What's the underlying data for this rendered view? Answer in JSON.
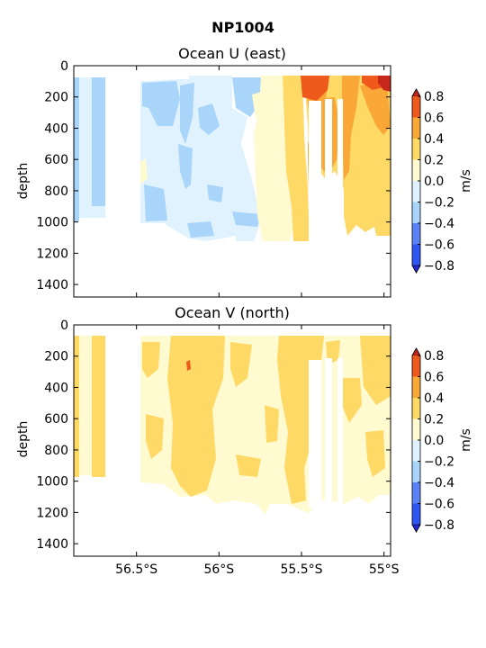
{
  "figure_title": "NP1004",
  "colors": {
    "c_m08_m06": "#2f55f2",
    "c_m06_m04": "#5a84f6",
    "c_m04_m02": "#a9d5fb",
    "c_m02_0": "#dff2fd",
    "c_0_02": "#fffad0",
    "c_02_04": "#ffd966",
    "c_04_06": "#f9a838",
    "c_06_08": "#ee5a1b",
    "over": "#c8281b",
    "under": "#2828e0"
  },
  "chart_data": [
    {
      "type": "heatmap",
      "title": "Ocean U (east)",
      "ylabel": "depth",
      "y_ticks": [
        0,
        200,
        400,
        600,
        800,
        1000,
        1200,
        1400
      ],
      "ylim": [
        1480,
        0
      ],
      "x_ticks": [
        "56.5°S",
        "56°S",
        "55.5°S",
        "55°S"
      ],
      "xlim": [
        -56.88,
        -54.96
      ],
      "colorbar": {
        "label": "m/s",
        "ticks": [
          "0.8",
          "0.6",
          "0.4",
          "0.2",
          "0.0",
          "−0.2",
          "−0.4",
          "−0.6",
          "−0.8"
        ],
        "levels": [
          -0.8,
          -0.6,
          -0.4,
          -0.2,
          0.0,
          0.2,
          0.4,
          0.6,
          0.8
        ],
        "extend": "both"
      },
      "sections": [
        {
          "lat": -56.82,
          "depth_top": 80,
          "depth_bottom": 980,
          "dominant": "-0.4 to -0.2"
        },
        {
          "lat": -56.72,
          "depth_top": 80,
          "depth_bottom": 980,
          "dominant": "-0.2 to 0.0"
        },
        {
          "lat": -56.45,
          "depth_top": 80,
          "depth_bottom": 1010,
          "dominant": "-0.2 to 0.0"
        },
        {
          "lat": -56.1,
          "depth_top": 80,
          "depth_bottom": 1100,
          "dominant": "-0.2 to 0.0"
        },
        {
          "lat": -55.85,
          "depth_top": 80,
          "depth_bottom": 1120,
          "dominant": "-0.2 to 0.0"
        },
        {
          "lat": -55.55,
          "depth_top": 80,
          "depth_bottom": 1150,
          "dominant": "0.2 to 0.4"
        },
        {
          "lat": -55.45,
          "depth_top": 80,
          "depth_bottom": 1150,
          "dominant": "0.4 to 0.6"
        },
        {
          "lat": -55.2,
          "depth_top": 80,
          "depth_bottom": 1120,
          "dominant": "0.2 to 0.4"
        },
        {
          "lat": -55.0,
          "depth_top": 80,
          "depth_bottom": 1100,
          "dominant": "0.2 to 0.4"
        }
      ],
      "max_value_region": {
        "lat": -54.98,
        "depth": 120,
        "range": "> 0.8"
      }
    },
    {
      "type": "heatmap",
      "title": "Ocean V (north)",
      "ylabel": "depth",
      "y_ticks": [
        0,
        200,
        400,
        600,
        800,
        1000,
        1200,
        1400
      ],
      "ylim": [
        1480,
        0
      ],
      "x_ticks": [
        "56.5°S",
        "56°S",
        "55.5°S",
        "55°S"
      ],
      "xlim": [
        -56.88,
        -54.96
      ],
      "colorbar": {
        "label": "m/s",
        "ticks": [
          "0.8",
          "0.6",
          "0.4",
          "0.2",
          "0.0",
          "−0.2",
          "−0.4",
          "−0.6",
          "−0.8"
        ],
        "levels": [
          -0.8,
          -0.6,
          -0.4,
          -0.2,
          0.0,
          0.2,
          0.4,
          0.6,
          0.8
        ],
        "extend": "both"
      },
      "sections": [
        {
          "lat": -56.82,
          "depth_top": 80,
          "depth_bottom": 980,
          "dominant": "0.2 to 0.4"
        },
        {
          "lat": -56.72,
          "depth_top": 80,
          "depth_bottom": 980,
          "dominant": "0.2 to 0.4"
        },
        {
          "lat": -56.45,
          "depth_top": 80,
          "depth_bottom": 1010,
          "dominant": "0.0 to 0.2"
        },
        {
          "lat": -56.1,
          "depth_top": 80,
          "depth_bottom": 1100,
          "dominant": "0.2 to 0.4"
        },
        {
          "lat": -55.85,
          "depth_top": 80,
          "depth_bottom": 1120,
          "dominant": "0.0 to 0.2"
        },
        {
          "lat": -55.55,
          "depth_top": 80,
          "depth_bottom": 1150,
          "dominant": "0.2 to 0.4"
        },
        {
          "lat": -55.2,
          "depth_top": 80,
          "depth_bottom": 1120,
          "dominant": "0.0 to 0.2"
        },
        {
          "lat": -55.0,
          "depth_top": 80,
          "depth_bottom": 1100,
          "dominant": "0.2 to 0.4"
        }
      ],
      "max_value_region": {
        "lat": -55.93,
        "depth": 270,
        "range": "0.6 to 0.8"
      }
    }
  ]
}
